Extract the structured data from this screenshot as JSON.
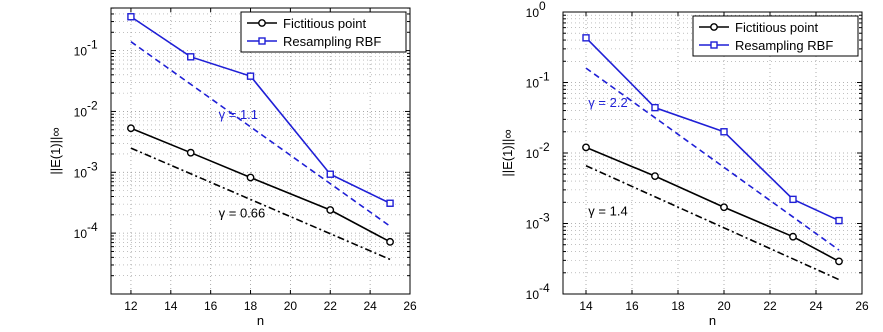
{
  "chart_data": [
    {
      "type": "line",
      "xlabel": "n",
      "ylabel": "||E(1)||∞",
      "xlim": [
        11,
        26
      ],
      "ylim_log10": [
        -5,
        -0.3
      ],
      "log_y": true,
      "grid": true,
      "legend_position": "top-right",
      "x_ticks": [
        "12",
        "14",
        "16",
        "18",
        "20",
        "22",
        "24",
        "26"
      ],
      "y_ticks": [
        {
          "base": "10",
          "exp": "-4",
          "v": -4
        },
        {
          "base": "10",
          "exp": "-3",
          "v": -3
        },
        {
          "base": "10",
          "exp": "-2",
          "v": -2
        },
        {
          "base": "10",
          "exp": "-1",
          "v": -1
        }
      ],
      "series": [
        {
          "name": "Fictitious point",
          "color": "#000000",
          "marker": "circle",
          "style": "solid",
          "x": [
            12,
            15,
            18,
            22,
            25
          ],
          "y": [
            0.0053,
            0.0021,
            0.00082,
            0.00024,
            7.2e-05
          ]
        },
        {
          "name": "Resampling RBF",
          "color": "#1f1fd6",
          "marker": "square",
          "style": "solid",
          "x": [
            12,
            15,
            18,
            22,
            25
          ],
          "y": [
            0.36,
            0.079,
            0.038,
            0.00093,
            0.00031
          ]
        },
        {
          "name": "",
          "color": "#1f1fd6",
          "marker": "none",
          "style": "dashed",
          "x": [
            12,
            25
          ],
          "y": [
            0.14,
            0.00013
          ]
        },
        {
          "name": "",
          "color": "#000000",
          "marker": "none",
          "style": "dashdot",
          "x": [
            12,
            25
          ],
          "y": [
            0.0025,
            3.7e-05
          ]
        }
      ],
      "annotations": [
        {
          "text": "γ = 1.1",
          "color": "#1f1fd6",
          "x": 16.4,
          "y": 0.0075
        },
        {
          "text": "γ = 0.66",
          "color": "#000000",
          "x": 16.4,
          "y": 0.00018
        }
      ]
    },
    {
      "type": "line",
      "xlabel": "n",
      "ylabel": "||E(1)||∞",
      "xlim": [
        13,
        26
      ],
      "ylim_log10": [
        -4,
        0
      ],
      "log_y": true,
      "grid": true,
      "legend_position": "top-right",
      "x_ticks": [
        "14",
        "16",
        "18",
        "20",
        "22",
        "24",
        "26"
      ],
      "y_ticks": [
        {
          "base": "10",
          "exp": "-4",
          "v": -4
        },
        {
          "base": "10",
          "exp": "-3",
          "v": -3
        },
        {
          "base": "10",
          "exp": "-2",
          "v": -2
        },
        {
          "base": "10",
          "exp": "-1",
          "v": -1
        },
        {
          "base": "10",
          "exp": "0",
          "v": 0
        }
      ],
      "series": [
        {
          "name": "Fictitious point",
          "color": "#000000",
          "marker": "circle",
          "style": "solid",
          "x": [
            14,
            17,
            20,
            23,
            25
          ],
          "y": [
            0.012,
            0.0047,
            0.0017,
            0.00065,
            0.00029
          ]
        },
        {
          "name": "Resampling RBF",
          "color": "#1f1fd6",
          "marker": "square",
          "style": "solid",
          "x": [
            14,
            17,
            20,
            23,
            25
          ],
          "y": [
            0.43,
            0.044,
            0.02,
            0.0022,
            0.0011
          ]
        },
        {
          "name": "",
          "color": "#1f1fd6",
          "marker": "none",
          "style": "dashed",
          "x": [
            14,
            25
          ],
          "y": [
            0.16,
            0.00042
          ]
        },
        {
          "name": "",
          "color": "#000000",
          "marker": "none",
          "style": "dashdot",
          "x": [
            14,
            25
          ],
          "y": [
            0.0066,
            0.00016
          ]
        }
      ],
      "annotations": [
        {
          "text": "γ = 2.2",
          "color": "#1f1fd6",
          "x": 14.1,
          "y": 0.045
        },
        {
          "text": "γ = 1.4",
          "color": "#000000",
          "x": 14.1,
          "y": 0.0013
        }
      ]
    }
  ]
}
